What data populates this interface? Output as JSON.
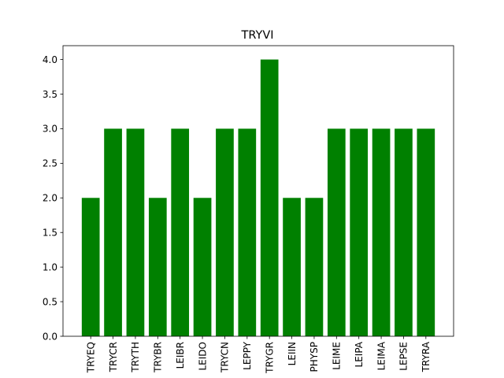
{
  "chart_data": {
    "type": "bar",
    "title": "TRYVI",
    "xlabel": "",
    "ylabel": "",
    "categories": [
      "TRYEQ",
      "TRYCR",
      "TRYTH",
      "TRYBR",
      "LEIBR",
      "LEIDO",
      "TRYCN",
      "LEPPY",
      "TRYGR",
      "LEIIN",
      "PHYSP",
      "LEIME",
      "LEIPA",
      "LEIMA",
      "LEPSE",
      "TRYRA"
    ],
    "values": [
      2,
      3,
      3,
      2,
      3,
      2,
      3,
      3,
      4,
      2,
      2,
      3,
      3,
      3,
      3,
      3
    ],
    "ylim": [
      0,
      4.2
    ],
    "yticks": [
      0.0,
      0.5,
      1.0,
      1.5,
      2.0,
      2.5,
      3.0,
      3.5,
      4.0
    ],
    "ytick_labels": [
      "0.0",
      "0.5",
      "1.0",
      "1.5",
      "2.0",
      "2.5",
      "3.0",
      "3.5",
      "4.0"
    ],
    "grid": false,
    "legend": "none",
    "bar_color": "#008000"
  }
}
